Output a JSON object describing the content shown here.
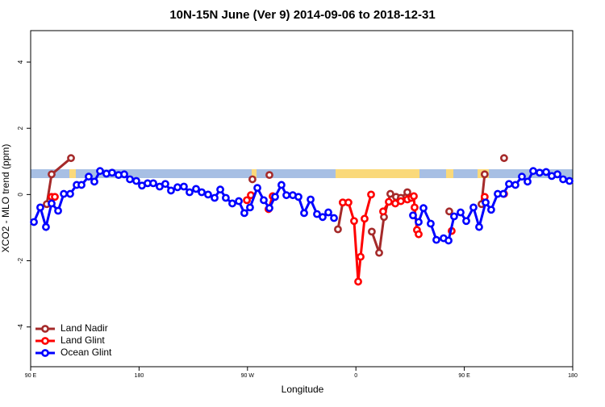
{
  "chart_data": {
    "type": "line",
    "title": "10N-15N June (Ver 9)   2014-09-06 to 2018-12-31",
    "x_label": "Longitude",
    "y_label": "XCO2 - MLO trend (ppm)",
    "xlim": [
      90,
      540
    ],
    "xticks": [
      {
        "value": 90,
        "label": "90 E"
      },
      {
        "value": 180,
        "label": "180"
      },
      {
        "value": 270,
        "label": "90 W"
      },
      {
        "value": 360,
        "label": "0"
      },
      {
        "value": 450,
        "label": "90 E"
      },
      {
        "value": 540,
        "label": "180"
      }
    ],
    "ylim": [
      -5.2,
      4.95
    ],
    "yticks": [
      -4,
      -2,
      0,
      2,
      4
    ],
    "legend": "bottom-left",
    "series": [
      {
        "name": "Land Nadir",
        "color": "#a52a2a",
        "x": [
          103.4,
          107.4,
          123.5,
          null,
          274.1,
          null,
          288.2,
          null,
          345.1,
          349.1,
          null,
          373.2,
          379.3,
          383.3,
          388.6,
          393.3,
          397.3,
          402.7,
          null,
          437.5,
          null,
          464.3,
          466.9,
          null,
          483.0
        ],
        "values": [
          -0.29,
          0.61,
          1.1,
          null,
          0.46,
          null,
          0.59,
          null,
          -1.05,
          -0.24,
          null,
          -1.12,
          -1.76,
          -0.68,
          0.02,
          -0.07,
          -0.1,
          0.07,
          null,
          -0.51,
          null,
          -0.29,
          0.61,
          null,
          1.1
        ]
      },
      {
        "name": "Land Glint",
        "color": "#ff0000",
        "x": [
          107.4,
          110.1,
          null,
          269.5,
          272.8,
          null,
          287.5,
          290.9,
          null,
          349.1,
          353.8,
          358.5,
          361.9,
          363.9,
          367.2,
          372.6,
          null,
          382.6,
          387.3,
          392.7,
          397.3,
          402.7,
          406.1,
          408.1,
          408.7,
          410.7,
          412.1,
          null,
          439.5,
          null,
          466.9,
          null,
          483.0
        ],
        "values": [
          -0.07,
          -0.07,
          null,
          -0.17,
          -0.02,
          null,
          -0.44,
          -0.05,
          null,
          -0.24,
          -0.24,
          -0.8,
          -2.63,
          -1.88,
          -0.73,
          0.0,
          null,
          -0.51,
          -0.22,
          -0.27,
          -0.2,
          -0.15,
          -0.1,
          -0.05,
          -0.39,
          -1.07,
          -1.2,
          null,
          -1.1,
          null,
          -0.07,
          null,
          0.02
        ]
      },
      {
        "name": "Ocean Glint",
        "color": "#0000ff",
        "x": [
          92.7,
          98.0,
          102.7,
          107.4,
          112.8,
          117.5,
          122.8,
          128.2,
          132.2,
          138.2,
          142.9,
          147.6,
          152.9,
          157.6,
          163.0,
          167.7,
          172.4,
          177.7,
          182.4,
          187.1,
          191.8,
          197.1,
          201.8,
          206.5,
          211.9,
          217.2,
          221.9,
          227.3,
          232.0,
          237.3,
          242.7,
          247.4,
          252.0,
          257.4,
          262.8,
          267.4,
          272.1,
          278.2,
          283.5,
          288.2,
          292.9,
          298.2,
          302.3,
          307.6,
          312.3,
          317.0,
          322.4,
          327.7,
          332.4,
          337.1,
          341.8,
          null,
          407.4,
          412.1,
          416.1,
          422.1,
          426.8,
          432.8,
          436.9,
          441.5,
          446.9,
          451.6,
          457.6,
          462.3,
          467.7,
          472.3,
          477.7,
          482.4,
          487.1,
          492.4,
          497.8,
          502.5,
          507.2,
          512.5,
          517.9,
          522.6,
          527.3,
          532.0,
          537.3
        ],
        "values": [
          -0.83,
          -0.39,
          -0.98,
          -0.27,
          -0.49,
          0.02,
          0.02,
          0.29,
          0.29,
          0.54,
          0.39,
          0.71,
          0.63,
          0.66,
          0.59,
          0.61,
          0.46,
          0.41,
          0.27,
          0.34,
          0.34,
          0.24,
          0.32,
          0.12,
          0.22,
          0.24,
          0.07,
          0.17,
          0.07,
          0.0,
          -0.1,
          0.15,
          -0.1,
          -0.27,
          -0.2,
          -0.56,
          -0.39,
          0.2,
          -0.17,
          -0.41,
          -0.07,
          0.29,
          -0.02,
          -0.02,
          -0.07,
          -0.56,
          -0.15,
          -0.59,
          -0.68,
          -0.54,
          -0.71,
          null,
          -0.63,
          -0.83,
          -0.41,
          -0.88,
          -1.37,
          -1.32,
          -1.39,
          -0.66,
          -0.54,
          -0.8,
          -0.39,
          -0.98,
          -0.24,
          -0.46,
          0.02,
          0.02,
          0.32,
          0.29,
          0.54,
          0.39,
          0.71,
          0.66,
          0.68,
          0.56,
          0.61,
          0.46,
          0.41
        ]
      }
    ]
  }
}
